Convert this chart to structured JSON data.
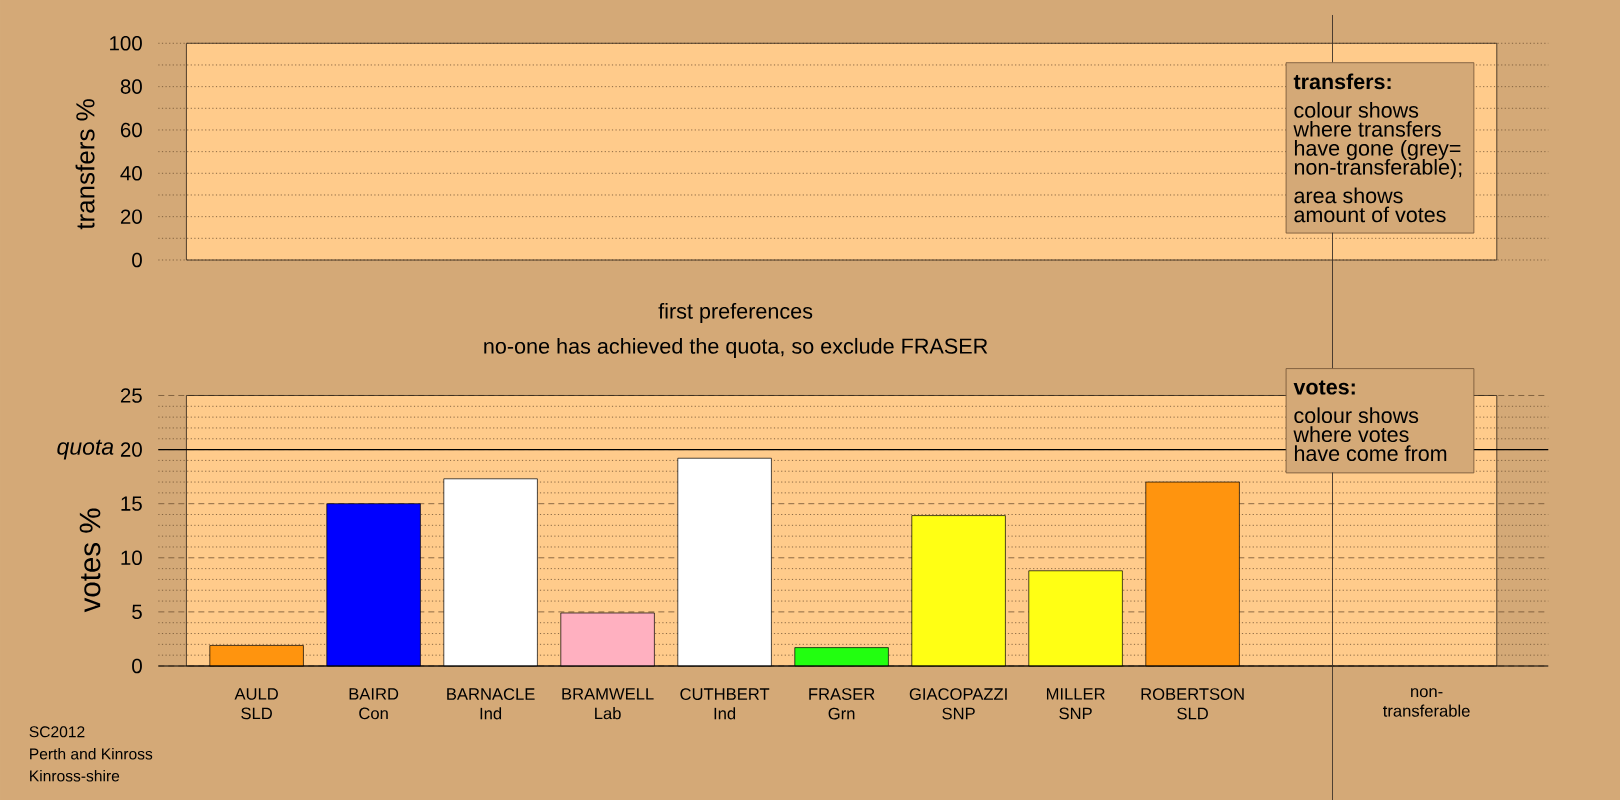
{
  "chart_data": [
    {
      "type": "bar",
      "ylabel": "transfers %",
      "categories": [
        null,
        null,
        null,
        null,
        null,
        null,
        null,
        null,
        null,
        null,
        null
      ],
      "values": [
        null,
        null,
        null,
        null,
        null,
        null,
        null,
        null,
        null,
        null,
        null
      ],
      "tick_labels": "y",
      "ylim": [
        0,
        100
      ],
      "yticks": [
        0,
        {
          "value": 10,
          "label": null
        },
        20,
        {
          "value": 30,
          "label": null
        },
        40,
        {
          "value": 50,
          "label": null
        },
        60,
        {
          "value": 70,
          "label": null
        },
        80,
        {
          "value": 90,
          "label": null
        },
        100
      ],
      "grid": "y",
      "annotations": [
        "transfers:",
        "colour shows where transfers have gone (grey= non-transferable);",
        "area shows amount of votes"
      ]
    },
    {
      "type": "bar",
      "title": "first preferences",
      "subtitle": "no-one has achieved the quota, so exclude FRASER",
      "ylabel": "votes %",
      "categories": [
        "AULD SLD",
        "BAIRD Con",
        "BARNACLE Ind",
        "BRAMWELL Lab",
        "CUTHBERT Ind",
        "FRASER Grn",
        "GIACOPAZZI SNP",
        "MILLER SNP",
        "ROBERTSON SLD",
        null,
        "non-transferable"
      ],
      "values": [
        1.9,
        15.0,
        17.3,
        4.9,
        19.2,
        1.7,
        13.9,
        8.8,
        17.0,
        null,
        null
      ],
      "colors": [
        "#ff940e",
        "#0000ff",
        "#ffffff",
        "#ffb0c0",
        "#ffffff",
        "#22ff10",
        "#ffff14",
        "#ffff14",
        "#ff940e",
        null,
        null
      ],
      "ylim": [
        0,
        25
      ],
      "yticks": [
        0,
        {
          "value": 1,
          "label": null
        },
        {
          "value": 2,
          "label": null
        },
        {
          "value": 3,
          "label": null
        },
        {
          "value": 4,
          "label": null
        },
        5,
        {
          "value": 6,
          "label": null
        },
        {
          "value": 7,
          "label": null
        },
        {
          "value": 8,
          "label": null
        },
        {
          "value": 9,
          "label": null
        },
        10,
        {
          "value": 11,
          "label": null
        },
        {
          "value": 12,
          "label": null
        },
        {
          "value": 13,
          "label": null
        },
        {
          "value": 14,
          "label": null
        },
        15,
        {
          "value": 16,
          "label": null
        },
        {
          "value": 17,
          "label": null
        },
        {
          "value": 18,
          "label": null
        },
        {
          "value": 19,
          "label": null
        },
        20,
        {
          "value": 21,
          "label": null
        },
        {
          "value": 22,
          "label": null
        },
        {
          "value": 23,
          "label": null
        },
        {
          "value": 24,
          "label": null
        },
        25
      ],
      "grid": "y",
      "ref_lines": [
        {
          "axis": "y",
          "value": 20,
          "label": "quota"
        }
      ],
      "annotations": [
        "votes:",
        "colour shows where votes have come from",
        "SC2012",
        "Perth and Kinross",
        "Kinross-shire"
      ]
    }
  ]
}
